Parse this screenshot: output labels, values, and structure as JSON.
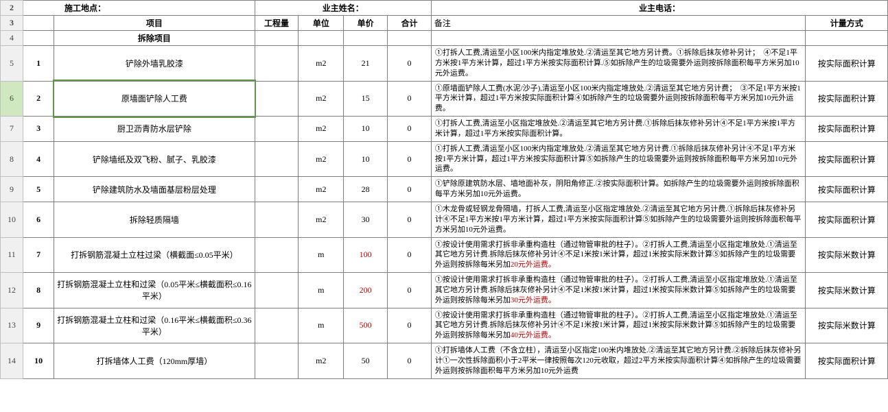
{
  "header2": {
    "location_label": "施工地点：",
    "owner_name_label": "业主姓名：",
    "owner_phone_label": "业主电话："
  },
  "header3": {
    "item": "项目",
    "qty": "工程量",
    "unit": "单位",
    "price": "单价",
    "total": "合计",
    "notes": "备注",
    "method": "计量方式"
  },
  "section_title": "拆除项目",
  "rows": [
    {
      "rownum": "5",
      "idx": "1",
      "item": "铲除外墙乳胶漆",
      "qty": "",
      "unit": "m2",
      "price": "21",
      "price_color": "#000",
      "total": "0",
      "notes": "①打拆人工费,清运至小区100米内指定堆放处.②清运至其它地方另计费。①拆除后抹灰修补另计；　④不足1平方米按1平方米计算，超过1平方米按实际面积计算.⑤如拆除产生的垃圾需要外运则按拆除面积每平方米另加10元外运费。",
      "method": "按实际面积计算"
    },
    {
      "rownum": "6",
      "idx": "2",
      "item": "原墙面铲除人工费",
      "qty": "",
      "unit": "m2",
      "price": "15",
      "price_color": "#000",
      "total": "0",
      "notes": "①原墙面铲除人工费(水泥/沙子),清运至小区100米内指定堆放处.②清运至其它地方另计费；　③不足1平方米按1平方米计算，超过1平方米按实际面积计算④如拆除产生的垃圾需要外运则按拆除面积每平方米另加10元外运费。",
      "method": "按实际面积计算",
      "selected": true
    },
    {
      "rownum": "7",
      "idx": "3",
      "item": "厨卫沥青防水层铲除",
      "qty": "",
      "unit": "m2",
      "price": "10",
      "price_color": "#000",
      "total": "0",
      "notes": "①打拆人工费,清运至小区指定堆放处.②清运至其它地方另计费.①拆除后抹灰修补另计④不足1平方米按1平方米计算，超过1平方米按实际面积计算。",
      "method": "按实际面积计算"
    },
    {
      "rownum": "8",
      "idx": "4",
      "item": "铲除墙纸及双飞粉、腻子、乳胶漆",
      "qty": "",
      "unit": "m2",
      "price": "10",
      "price_color": "#000",
      "total": "0",
      "notes": "①打拆人工费,清运至小区100米内指定堆放处.②清运至其它地方另计费.①拆除后抹灰修补另计④不足1平方米按1平方米计算，超过1平方米按实际面积计算⑤如拆除产生的垃圾需要外运则按拆除面积每平方米另加10元外运费。",
      "method": "按实际面积计算"
    },
    {
      "rownum": "9",
      "idx": "5",
      "item": "铲除建筑防水及墙面基层粉层处理",
      "qty": "",
      "unit": "m2",
      "price": "28",
      "price_color": "#000",
      "total": "0",
      "notes": "①铲除原建筑防水层、墙地面补灰，阴阳角修正.②按实际面积计算。如拆除产生的垃圾需要外运则按拆除面积每平方米另加10元外运费。",
      "method": "按实际面积计算"
    },
    {
      "rownum": "10",
      "idx": "6",
      "item": "拆除轻质隔墙",
      "qty": "",
      "unit": "m2",
      "price": "30",
      "price_color": "#000",
      "total": "0",
      "notes": "①木龙骨或轻钢龙骨隔墙，打拆人工费,清运至小区指定堆放处.②清运至其它地方另计费.①拆除后抹灰修补另计④不足1平方米按1平方米计算，超过1平方米按实际面积计算⑤如拆除产生的垃圾需要外运则按拆除面积每平方米另加10元外运费。",
      "method": "按实际面积计算"
    },
    {
      "rownum": "11",
      "idx": "7",
      "item": "打拆钢筋混凝土立柱过梁（横截面≤0.05平米）",
      "qty": "",
      "unit": "m",
      "price": "100",
      "price_color": "#c00000",
      "total": "0",
      "notes": "①按设计使用需求打拆非承重构造柱（通过物管审批的柱子）。②打拆人工费,清运至小区指定堆放处.①清运至其它地方另计费.拆除后抹灰修补另计④不足1米按1米计算，超过1米按实际米数计算⑤如拆除产生的垃圾需要外运则按拆除每米另加",
      "notes_red": "20元外运费。",
      "method": "按实际米数计算"
    },
    {
      "rownum": "12",
      "idx": "8",
      "item": "打拆钢筋混凝土立柱和过梁（0.05平米≤横截面积≤0.16平米）",
      "qty": "",
      "unit": "m",
      "price": "200",
      "price_color": "#c00000",
      "total": "0",
      "notes": "①按设计使用需求打拆非承重构造柱（通过物管审批的柱子）。②打拆人工费,清运至小区指定堆放处.①清运至其它地方另计费.拆除后抹灰修补另计④不足1米按1米计算，超过1米按实际米数计算⑤如拆除产生的垃圾需要外运则按拆除每米另加",
      "notes_red": "30元外运费。",
      "method": "按实际米数计算"
    },
    {
      "rownum": "13",
      "idx": "9",
      "item": "打拆钢筋混凝土立柱和过梁（0.16平米≤横截面积≤0.36平米）",
      "qty": "",
      "unit": "m",
      "price": "500",
      "price_color": "#c00000",
      "total": "0",
      "notes": "①按设计使用需求打拆非承重构造柱（通过物管审批的柱子）。②打拆人工费,清运至小区指定堆放处.①清运至其它地方另计费.拆除后抹灰修补另计④不足1米按1米计算，超过1米按实际米数计算⑤如拆除产生的垃圾需要外运则按拆除每米另加",
      "notes_red": "40元外运费。",
      "method": "按实际米数计算"
    },
    {
      "rownum": "14",
      "idx": "10",
      "item": "打拆墙体人工费（120mm厚墙）",
      "qty": "",
      "unit": "m2",
      "price": "50",
      "price_color": "#000",
      "total": "0",
      "notes": "①打拆墙体人工费（不含立柱），清运至小区指定100米内堆放处.②清运至其它地方另计费.②拆除后抹灰修补另计①一次性拆除面积小于2平米一律按照每次120元收取，超过2平方米按实际面积计算④如拆除产生的垃圾需要外运则按拆除面积每平方米另加10元外运费",
      "method": "按实际面积计算"
    }
  ],
  "colors": {
    "red_text": "#c00000",
    "grid_border": "#808080",
    "row_header_bg": "#f0f0f0",
    "selected_bg": "#d0e8c0",
    "selected_outline": "#5a9a3f"
  }
}
